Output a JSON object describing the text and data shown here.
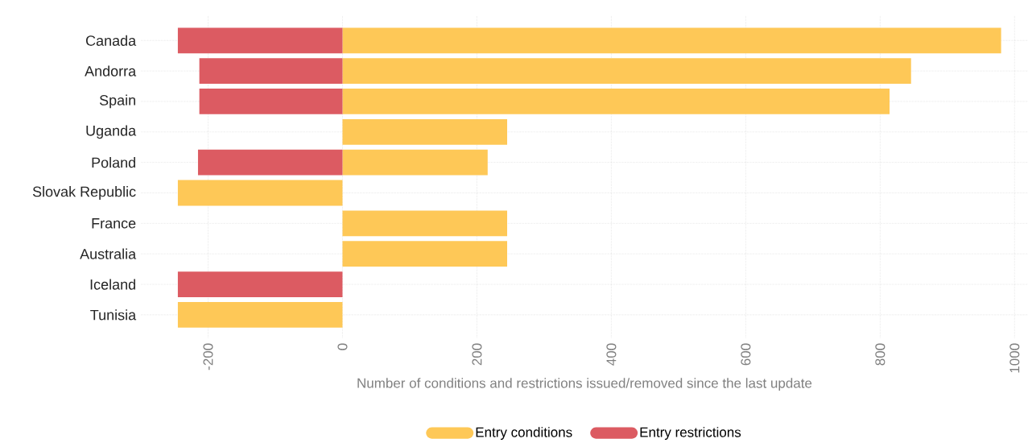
{
  "chart_data": {
    "type": "bar",
    "orientation": "horizontal",
    "xlabel": "Number of conditions and restrictions issued/removed since the last update",
    "categories": [
      "Canada",
      "Andorra",
      "Spain",
      "Uganda",
      "Poland",
      "Slovak Republic",
      "France",
      "Australia",
      "Iceland",
      "Tunisia"
    ],
    "series": [
      {
        "name": "Entry conditions",
        "color": "#fec857",
        "values": [
          980,
          846,
          814,
          245,
          216,
          -245,
          245,
          245,
          null,
          -245
        ]
      },
      {
        "name": "Entry restrictions",
        "color": "#dc5b62",
        "values": [
          -245,
          -213,
          -213,
          null,
          -215,
          null,
          null,
          null,
          -245,
          null
        ]
      }
    ],
    "xlim": [
      -300,
      1020
    ],
    "xticks": [
      -200,
      0,
      200,
      400,
      600,
      800,
      1000
    ],
    "grid": true,
    "legend": "bottom"
  }
}
